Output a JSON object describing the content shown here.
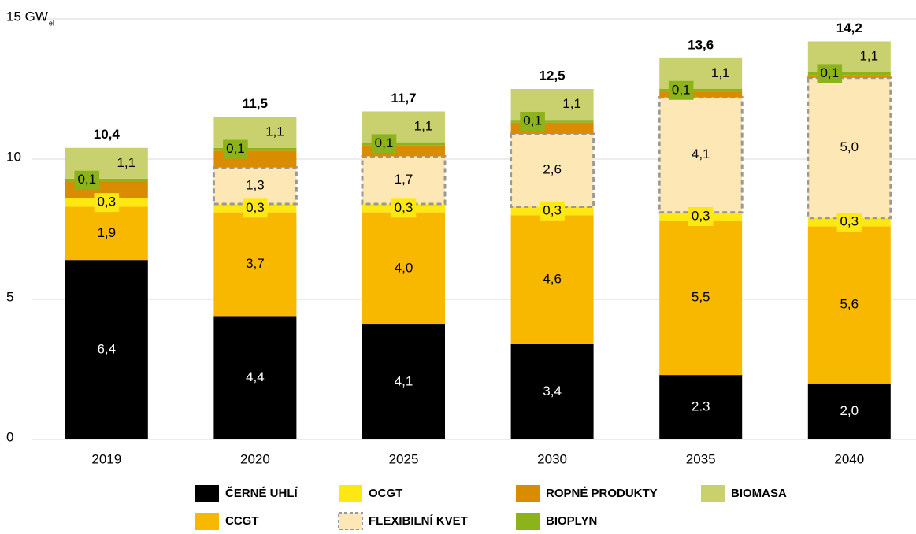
{
  "chart_data": {
    "type": "stacked_bar",
    "categories": [
      "2019",
      "2020",
      "2025",
      "2030",
      "2035",
      "2040"
    ],
    "series": [
      {
        "name": "ČERNÉ UHLÍ",
        "color": "#000000",
        "values": [
          6.4,
          4.4,
          4.1,
          3.4,
          2.3,
          2.0
        ],
        "value_labels": [
          "6,4",
          "4,4",
          "4,1",
          "3,4",
          "2.3",
          "2,0"
        ]
      },
      {
        "name": "CCGT",
        "color": "#f9b800",
        "values": [
          1.9,
          3.7,
          4.0,
          4.6,
          5.5,
          5.6
        ],
        "value_labels": [
          "1,9",
          "3,7",
          "4,0",
          "4,6",
          "5,5",
          "5,6"
        ]
      },
      {
        "name": "OCGT",
        "color": "#ffe812",
        "values": [
          0.3,
          0.3,
          0.3,
          0.3,
          0.3,
          0.3
        ],
        "value_labels": [
          "0,3",
          "0,3",
          "0,3",
          "0,3",
          "0,3",
          "0,3"
        ]
      },
      {
        "name": "FLEXIBILNÍ KVET",
        "color": "#fde8b5",
        "values": [
          null,
          1.3,
          1.7,
          2.6,
          4.1,
          5.0
        ],
        "value_labels": [
          null,
          "1,3",
          "1,7",
          "2,6",
          "4,1",
          "5,0"
        ]
      },
      {
        "name": "ROPNÉ PRODUKTY",
        "color": "#d98c00",
        "values": [
          0.6,
          0.6,
          0.4,
          0.4,
          0.2,
          0.1
        ]
      },
      {
        "name": "BIOPLYN",
        "color": "#8db31a",
        "values": [
          0.1,
          0.1,
          0.1,
          0.1,
          0.1,
          0.1
        ],
        "value_labels": [
          "0,1",
          "0,1",
          "0,1",
          "0,1",
          "0,1",
          "0,1"
        ]
      },
      {
        "name": "BIOMASA",
        "color": "#c9d16e",
        "values": [
          1.1,
          1.1,
          1.1,
          1.1,
          1.1,
          1.1
        ],
        "value_labels": [
          "1,1",
          "1,1",
          "1,1",
          "1,1",
          "1,1",
          "1,1"
        ]
      }
    ],
    "totals": [
      10.4,
      11.5,
      11.7,
      12.5,
      13.6,
      14.2
    ],
    "total_labels": [
      "10,4",
      "11,5",
      "11,7",
      "12,5",
      "13,6",
      "14,2"
    ],
    "ylim": [
      0,
      15
    ],
    "yticks": [
      0,
      5,
      10,
      {
        "value": 15,
        "label": "15 GW"
      }
    ],
    "y_unit_subscript": "el",
    "grid": true
  }
}
